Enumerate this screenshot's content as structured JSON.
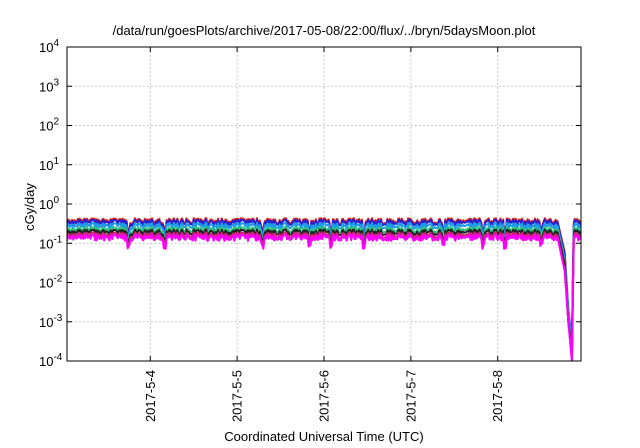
{
  "chart_data": {
    "type": "line",
    "title": "/data/run/goesPlots/archive/2017-05-08/22:00/flux/../bryn/5daysMoon.plot",
    "xlabel": "Coordinated Universal Time (UTC)",
    "ylabel": "cGy/day",
    "yscale": "log",
    "ylim": [
      0.0001,
      10000
    ],
    "yticks": [
      {
        "value": 0.0001,
        "base": "10",
        "exp": "-4"
      },
      {
        "value": 0.001,
        "base": "10",
        "exp": "-3"
      },
      {
        "value": 0.01,
        "base": "10",
        "exp": "-2"
      },
      {
        "value": 0.1,
        "base": "10",
        "exp": "-1"
      },
      {
        "value": 1,
        "base": "10",
        "exp": "0"
      },
      {
        "value": 10,
        "base": "10",
        "exp": "1"
      },
      {
        "value": 100,
        "base": "10",
        "exp": "2"
      },
      {
        "value": 1000,
        "base": "10",
        "exp": "3"
      },
      {
        "value": 10000,
        "base": "10",
        "exp": "4"
      }
    ],
    "xlim": [
      "2017-05-03 01:00",
      "2017-05-08 23:00"
    ],
    "xticks": [
      "2017-5-4",
      "2017-5-5",
      "2017-5-6",
      "2017-5-7",
      "2017-5-8"
    ],
    "grid": true,
    "legend": "none",
    "series": [
      {
        "color": "#e0261c",
        "level": 0.37,
        "x": [
          "2017-05-03 01:00",
          "2017-05-04 00:00",
          "2017-05-05 00:00",
          "2017-05-06 00:00",
          "2017-05-07 00:00",
          "2017-05-08 00:00",
          "2017-05-08 16:30",
          "2017-05-08 18:30",
          "2017-05-08 19:30",
          "2017-05-08 20:30",
          "2017-05-08 21:00",
          "2017-05-08 22:00",
          "2017-05-08 23:00"
        ],
        "y": [
          0.37,
          0.37,
          0.37,
          0.37,
          0.37,
          0.37,
          0.37,
          0.06,
          0.002,
          0.0003,
          0.37,
          0.37,
          0.37
        ]
      },
      {
        "color": "#2a1fd0",
        "level": 0.34,
        "x": [
          "2017-05-03 01:00",
          "2017-05-04 00:00",
          "2017-05-05 00:00",
          "2017-05-06 00:00",
          "2017-05-07 00:00",
          "2017-05-08 00:00",
          "2017-05-08 16:30",
          "2017-05-08 18:30",
          "2017-05-08 19:30",
          "2017-05-08 20:30",
          "2017-05-08 21:00",
          "2017-05-08 22:00",
          "2017-05-08 23:00"
        ],
        "y": [
          0.34,
          0.34,
          0.34,
          0.34,
          0.34,
          0.34,
          0.34,
          0.05,
          0.002,
          0.0003,
          0.34,
          0.34,
          0.34
        ]
      },
      {
        "color": "#1e9be8",
        "level": 0.28,
        "x": [
          "2017-05-03 01:00",
          "2017-05-04 00:00",
          "2017-05-05 00:00",
          "2017-05-06 00:00",
          "2017-05-07 00:00",
          "2017-05-08 00:00",
          "2017-05-08 16:30",
          "2017-05-08 18:30",
          "2017-05-08 19:30",
          "2017-05-08 20:30",
          "2017-05-08 21:00",
          "2017-05-08 22:00",
          "2017-05-08 23:00"
        ],
        "y": [
          0.28,
          0.28,
          0.28,
          0.28,
          0.28,
          0.28,
          0.28,
          0.04,
          0.002,
          0.0002,
          0.28,
          0.28,
          0.28
        ]
      },
      {
        "color": "#2ec27e",
        "level": 0.22,
        "x": [
          "2017-05-03 01:00",
          "2017-05-04 00:00",
          "2017-05-05 00:00",
          "2017-05-06 00:00",
          "2017-05-07 00:00",
          "2017-05-08 00:00",
          "2017-05-08 16:30",
          "2017-05-08 18:30",
          "2017-05-08 19:30",
          "2017-05-08 20:30",
          "2017-05-08 21:00",
          "2017-05-08 22:00",
          "2017-05-08 23:00"
        ],
        "y": [
          0.22,
          0.22,
          0.22,
          0.22,
          0.22,
          0.22,
          0.22,
          0.03,
          0.001,
          0.0002,
          0.22,
          0.22,
          0.22
        ]
      },
      {
        "color": "#222222",
        "level": 0.19,
        "x": [
          "2017-05-03 01:00",
          "2017-05-04 00:00",
          "2017-05-05 00:00",
          "2017-05-06 00:00",
          "2017-05-07 00:00",
          "2017-05-08 00:00",
          "2017-05-08 16:30",
          "2017-05-08 18:30",
          "2017-05-08 19:30",
          "2017-05-08 20:30",
          "2017-05-08 21:00",
          "2017-05-08 22:00",
          "2017-05-08 23:00"
        ],
        "y": [
          0.19,
          0.19,
          0.19,
          0.19,
          0.19,
          0.19,
          0.19,
          0.03,
          0.001,
          0.0002,
          0.19,
          0.19,
          0.19
        ]
      },
      {
        "color": "#d0207a",
        "level": 0.16,
        "x": [
          "2017-05-03 01:00",
          "2017-05-04 00:00",
          "2017-05-05 00:00",
          "2017-05-06 00:00",
          "2017-05-07 00:00",
          "2017-05-08 00:00",
          "2017-05-08 16:30",
          "2017-05-08 18:30",
          "2017-05-08 19:30",
          "2017-05-08 20:30",
          "2017-05-08 21:00",
          "2017-05-08 22:00",
          "2017-05-08 23:00"
        ],
        "y": [
          0.16,
          0.16,
          0.16,
          0.16,
          0.16,
          0.16,
          0.16,
          0.02,
          0.001,
          0.0001,
          0.16,
          0.16,
          0.16
        ]
      },
      {
        "color": "#ff00ff",
        "level": 0.14,
        "x": [
          "2017-05-03 01:00",
          "2017-05-04 00:00",
          "2017-05-05 00:00",
          "2017-05-06 00:00",
          "2017-05-07 00:00",
          "2017-05-08 00:00",
          "2017-05-08 16:30",
          "2017-05-08 18:30",
          "2017-05-08 19:30",
          "2017-05-08 20:30",
          "2017-05-08 21:00",
          "2017-05-08 22:00",
          "2017-05-08 23:00"
        ],
        "y": [
          0.14,
          0.14,
          0.14,
          0.14,
          0.14,
          0.14,
          0.14,
          0.02,
          0.001,
          0.0001,
          0.14,
          0.14,
          0.14
        ]
      }
    ]
  }
}
